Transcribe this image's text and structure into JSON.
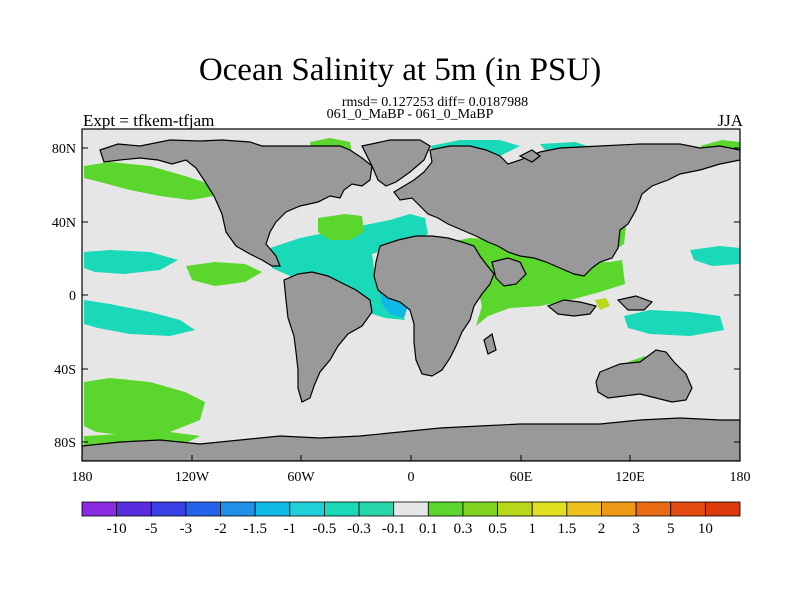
{
  "title": "Ocean Salinity at 5m (in PSU)",
  "stats_line": "rmsd= 0.127253 diff= 0.0187988",
  "comparison_line": "061_0_MaBP - 061_0_MaBP",
  "experiment_label": "Expt = tfkem-tfjam",
  "season_label": "JJA",
  "lat_ticks": [
    "80N",
    "40N",
    "0",
    "40S",
    "80S"
  ],
  "lon_ticks": [
    "180",
    "120W",
    "60W",
    "0",
    "60E",
    "120E",
    "180"
  ],
  "colorbar": {
    "labels": [
      "-10",
      "-5",
      "-3",
      "-2",
      "-1.5",
      "-1",
      "-0.5",
      "-0.3",
      "-0.1",
      "0.1",
      "0.3",
      "0.5",
      "1",
      "1.5",
      "2",
      "3",
      "5",
      "10"
    ],
    "colors": [
      "#8a2be2",
      "#5a2ee0",
      "#3a3fe6",
      "#2563eb",
      "#1f8fe8",
      "#10b8e6",
      "#20cfd8",
      "#19d9b8",
      "#27d6a8",
      "#e6e6e6",
      "#5ad62c",
      "#7fd21f",
      "#b9d81a",
      "#e0e020",
      "#f0c020",
      "#ee9a18",
      "#e86a12",
      "#e24a10",
      "#dd3a0c"
    ]
  },
  "colors": {
    "land": "#999999",
    "ocean_background": "#e6e6e6",
    "positive_small": "#5ad62c",
    "negative_small": "#19d9b8",
    "negative_medium": "#10b8e6",
    "positive_medium": "#b9d81a",
    "positive_large": "#f0c020"
  }
}
